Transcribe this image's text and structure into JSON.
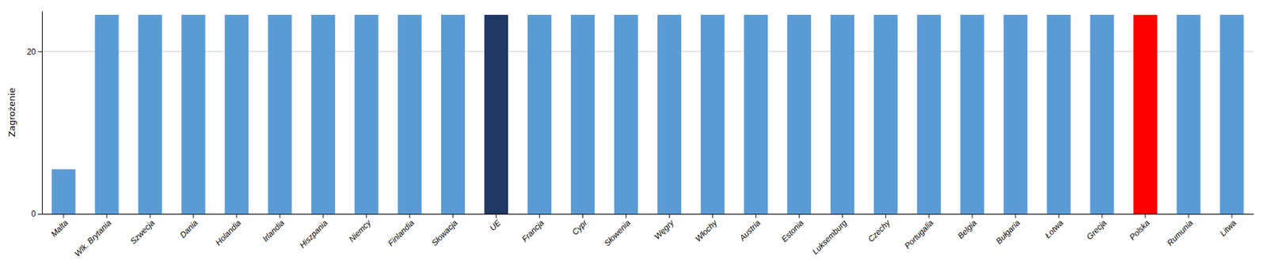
{
  "chart_data": {
    "type": "bar",
    "ylabel": "Zagrożenie",
    "categories": [
      "Malta",
      "Wlk. Brytania",
      "Szwecja",
      "Dania",
      "Holandia",
      "Irlandia",
      "Hiszpania",
      "Niemcy",
      "Finlandia",
      "Słowacja",
      "UE",
      "Francja",
      "Cypr",
      "Słowenia",
      "Węgry",
      "Włochy",
      "Austria",
      "Estonia",
      "Luksemburg",
      "Czechy",
      "Portugalia",
      "Belgia",
      "Bułgaria",
      "Łotwa",
      "Grecja",
      "Polska",
      "Rumunia",
      "Litwa"
    ],
    "values": [
      5.5,
      24.5,
      24.5,
      24.5,
      24.5,
      24.5,
      24.5,
      24.5,
      24.5,
      24.5,
      24.5,
      24.5,
      24.5,
      24.5,
      24.5,
      24.5,
      24.5,
      24.5,
      24.5,
      24.5,
      24.5,
      24.5,
      24.5,
      24.5,
      24.5,
      24.5,
      24.5,
      24.5
    ],
    "colors": [
      "#5b9bd5",
      "#5b9bd5",
      "#5b9bd5",
      "#5b9bd5",
      "#5b9bd5",
      "#5b9bd5",
      "#5b9bd5",
      "#5b9bd5",
      "#5b9bd5",
      "#5b9bd5",
      "#1f3864",
      "#5b9bd5",
      "#5b9bd5",
      "#5b9bd5",
      "#5b9bd5",
      "#5b9bd5",
      "#5b9bd5",
      "#5b9bd5",
      "#5b9bd5",
      "#5b9bd5",
      "#5b9bd5",
      "#5b9bd5",
      "#5b9bd5",
      "#5b9bd5",
      "#5b9bd5",
      "#ff0000",
      "#5b9bd5",
      "#5b9bd5"
    ],
    "ylim": [
      0,
      25
    ],
    "yticks": [
      0,
      20
    ],
    "grid": true
  }
}
